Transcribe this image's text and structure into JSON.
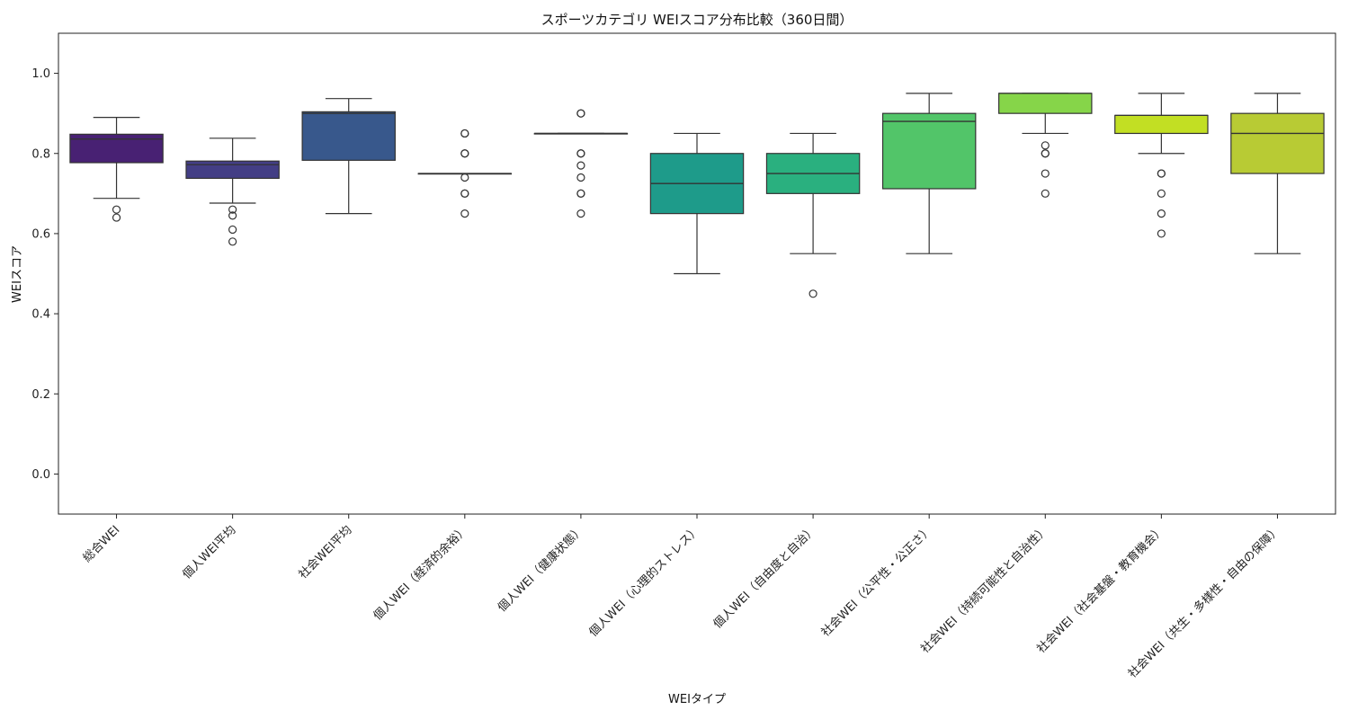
{
  "chart_data": {
    "type": "box",
    "title": "スポーツカテゴリ WEIスコア分布比較（360日間）",
    "xlabel": "WEIタイプ",
    "ylabel": "WEIスコア",
    "ylim": [
      -0.1,
      1.1
    ],
    "yticks": [
      0.0,
      0.2,
      0.4,
      0.6,
      0.8,
      1.0
    ],
    "ytick_labels": [
      "0.0",
      "0.2",
      "0.4",
      "0.6",
      "0.8",
      "1.0"
    ],
    "grid": false,
    "legend": "none",
    "categories": [
      "総合WEI",
      "個人WEI平均",
      "社会WEI平均",
      "個人WEI（経済的余裕）",
      "個人WEI（健康状態）",
      "個人WEI（心理的ストレス）",
      "個人WEI（自由度と自治）",
      "社会WEI（公平性・公正さ）",
      "社会WEI（持続可能性と自治性）",
      "社会WEI（社会基盤・教育機会）",
      "社会WEI（共生・多様性・自由の保障）"
    ],
    "boxes": [
      {
        "whisker_low": 0.688,
        "q1": 0.777,
        "median": 0.836,
        "q3": 0.848,
        "whisker_high": 0.89,
        "outliers": [
          0.66,
          0.64
        ],
        "color": "#482173"
      },
      {
        "whisker_low": 0.676,
        "q1": 0.738,
        "median": 0.772,
        "q3": 0.781,
        "whisker_high": 0.838,
        "outliers": [
          0.66,
          0.645,
          0.61,
          0.58
        ],
        "color": "#433e85"
      },
      {
        "whisker_low": 0.65,
        "q1": 0.783,
        "median": 0.9,
        "q3": 0.904,
        "whisker_high": 0.937,
        "outliers": [],
        "color": "#38588c"
      },
      {
        "whisker_low": 0.75,
        "q1": 0.75,
        "median": 0.75,
        "q3": 0.75,
        "whisker_high": 0.75,
        "outliers": [
          0.85,
          0.85,
          0.8,
          0.8,
          0.74,
          0.7,
          0.7,
          0.65
        ],
        "color": "#2d708e"
      },
      {
        "whisker_low": 0.85,
        "q1": 0.85,
        "median": 0.85,
        "q3": 0.85,
        "whisker_high": 0.85,
        "outliers": [
          0.9,
          0.9,
          0.8,
          0.8,
          0.77,
          0.74,
          0.7,
          0.7,
          0.65
        ],
        "color": "#25858e"
      },
      {
        "whisker_low": 0.5,
        "q1": 0.65,
        "median": 0.725,
        "q3": 0.8,
        "whisker_high": 0.85,
        "outliers": [],
        "color": "#1e9b8a"
      },
      {
        "whisker_low": 0.55,
        "q1": 0.7,
        "median": 0.75,
        "q3": 0.8,
        "whisker_high": 0.85,
        "outliers": [
          0.45
        ],
        "color": "#2ab07f"
      },
      {
        "whisker_low": 0.55,
        "q1": 0.712,
        "median": 0.88,
        "q3": 0.9,
        "whisker_high": 0.95,
        "outliers": [],
        "color": "#52c569"
      },
      {
        "whisker_low": 0.85,
        "q1": 0.9,
        "median": 0.95,
        "q3": 0.95,
        "whisker_high": 0.95,
        "outliers": [
          0.82,
          0.8,
          0.8,
          0.75,
          0.7
        ],
        "color": "#86d549"
      },
      {
        "whisker_low": 0.8,
        "q1": 0.85,
        "median": 0.895,
        "q3": 0.895,
        "whisker_high": 0.95,
        "outliers": [
          0.75,
          0.75,
          0.7,
          0.65,
          0.6
        ],
        "color": "#c2df23"
      },
      {
        "whisker_low": 0.55,
        "q1": 0.75,
        "median": 0.85,
        "q3": 0.9,
        "whisker_high": 0.95,
        "outliers": [],
        "color": "#b8cb34"
      }
    ]
  }
}
